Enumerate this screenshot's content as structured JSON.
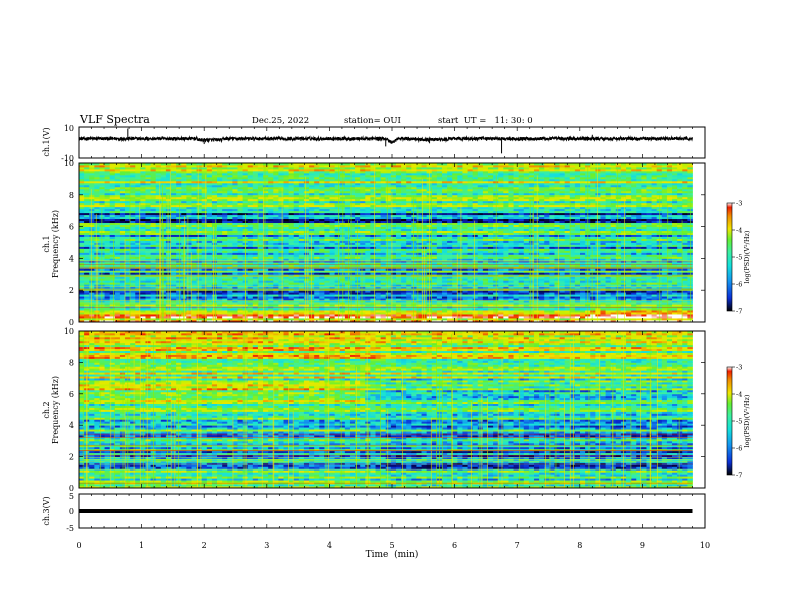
{
  "header": {
    "title": "VLF Spectra",
    "date": "Dec.25, 2022",
    "station": "station= OUI",
    "start": "start  UT =   11: 30: 0"
  },
  "colors": {
    "colormap": [
      "#000000",
      "#06086e",
      "#0a2fd6",
      "#1496f0",
      "#14e0dc",
      "#3cf0a0",
      "#64f032",
      "#c8f000",
      "#f0e600",
      "#f08c00",
      "#f01e00",
      "#ffffff"
    ],
    "waveform": "#000000"
  },
  "chart_data": [
    {
      "type": "line",
      "name": "ch1-waveform",
      "ylabel": "ch.1(V)",
      "ylim": [
        -10,
        10
      ],
      "ytick_labels": [
        "10",
        "-10"
      ],
      "xlim": [
        0,
        10
      ],
      "baseline": 2.5,
      "events": [
        {
          "x": 0.78,
          "y": 9.0
        },
        {
          "x": 2.0,
          "y": -1.0
        },
        {
          "x": 4.9,
          "y": -2.5
        },
        {
          "x": 5.6,
          "y": -0.5
        },
        {
          "x": 6.75,
          "y": -7.0
        },
        {
          "x": 8.2,
          "y": 5.0
        }
      ]
    },
    {
      "type": "heatmap",
      "name": "ch1-spectrogram",
      "ylabel_line1": "ch.1",
      "ylabel_line2": "Frequency (kHz)",
      "xlim": [
        0,
        9.8
      ],
      "ylim": [
        0,
        10
      ],
      "ytick_labels": [
        "0",
        "2",
        "4",
        "6",
        "8",
        "10"
      ],
      "colorbar": {
        "label": "log(PSD)(V²/Hz)",
        "range": [
          -7,
          -3
        ],
        "tick_labels": [
          "-3",
          "-4",
          "-5",
          "-6",
          "-7"
        ]
      }
    },
    {
      "type": "heatmap",
      "name": "ch2-spectrogram",
      "ylabel_line1": "ch.2",
      "ylabel_line2": "Frequency (kHz)",
      "xlim": [
        0,
        9.8
      ],
      "ylim": [
        0,
        10
      ],
      "ytick_labels": [
        "0",
        "2",
        "4",
        "6",
        "8",
        "10"
      ],
      "colorbar": {
        "label": "log(PSD)(V²/Hz)",
        "range": [
          -7,
          -3
        ],
        "tick_labels": [
          "-3",
          "-4",
          "-5",
          "-6",
          "-7"
        ]
      }
    },
    {
      "type": "line",
      "name": "ch3-waveform",
      "ylabel": "ch.3(V)",
      "ylim": [
        -5,
        5
      ],
      "ytick_labels": [
        "5",
        "0",
        "-5"
      ],
      "xlim": [
        0,
        10
      ],
      "baseline": 0
    }
  ],
  "xaxis": {
    "label": "Time  (min)",
    "range": [
      0,
      10
    ],
    "tick_labels": [
      "0",
      "1",
      "2",
      "3",
      "4",
      "5",
      "6",
      "7",
      "8",
      "9",
      "10"
    ]
  }
}
